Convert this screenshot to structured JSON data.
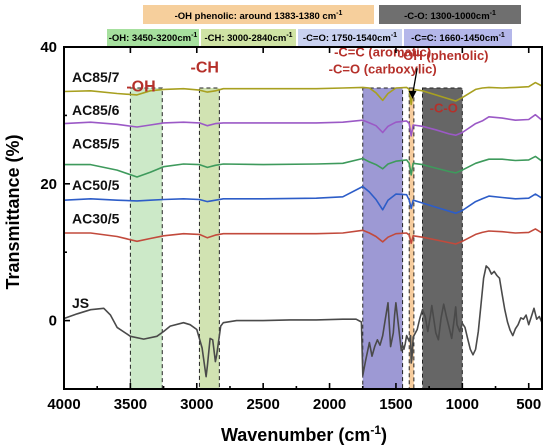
{
  "chart_data": {
    "type": "line",
    "xlabel": "Wavenumber (cm",
    "xlabel_sup": "-1",
    "xlabel_end": ")",
    "ylabel": "Transmittance (%)",
    "xlim": [
      4000,
      400
    ],
    "ylim": [
      -10,
      40
    ],
    "xticks": [
      4000,
      3500,
      3000,
      2500,
      2000,
      1500,
      1000,
      500
    ],
    "yticks": [
      0,
      20,
      40
    ],
    "grid": false,
    "legend": [
      {
        "text": "-OH phenolic: around 1383-1380 cm",
        "sup": "-1",
        "color": "#f6cf9c"
      },
      {
        "text": "-C-O: 1300-1000cm",
        "sup": "-1",
        "color": "#6f6f6f"
      },
      {
        "text": "-OH: 3450-3200cm",
        "sup": "-1",
        "color": "#a6e09e"
      },
      {
        "text": "-CH: 3000-2840cm",
        "sup": "-1",
        "color": "#cfe3a4"
      },
      {
        "text": "-C=O: 1750-1540cm",
        "sup": "-1",
        "color": "#c9d2f0"
      },
      {
        "text": "-C=C: 1660-1450cm",
        "sup": "-1",
        "color": "#b4b7ea"
      }
    ],
    "bands": [
      {
        "from": 3500,
        "to": 3260,
        "color": "#8fcf86",
        "opacity": 0.45
      },
      {
        "from": 2980,
        "to": 2830,
        "color": "#b3d17f",
        "opacity": 0.6
      },
      {
        "from": 1750,
        "to": 1450,
        "color": "#5c55b8",
        "opacity": 0.6
      },
      {
        "from": 1400,
        "to": 1365,
        "color": "#f2b774",
        "opacity": 0.7
      },
      {
        "from": 1300,
        "to": 1000,
        "color": "#333333",
        "opacity": 0.75
      }
    ],
    "annotations": [
      {
        "text": "-OH",
        "x": 3420,
        "y": 33.5,
        "size": 16
      },
      {
        "text": "-CH",
        "x": 2940,
        "y": 36.3,
        "size": 16
      },
      {
        "text": "-C=C (aromatic)",
        "x": 1600,
        "y": 38.6,
        "size": 13
      },
      {
        "text": "-C=O (carboxylic)",
        "x": 1600,
        "y": 36.1,
        "size": 13
      },
      {
        "text": "-OH (phenolic)",
        "x": 1140,
        "y": 38.1,
        "size": 13
      },
      {
        "text": "-C-O",
        "x": 1140,
        "y": 30.4,
        "size": 13
      }
    ],
    "series": [
      {
        "name": "AC85/7",
        "color": "#a8a020",
        "label_y": 35.6,
        "x": [
          4000,
          3800,
          3600,
          3450,
          3350,
          3250,
          3100,
          2980,
          2920,
          2860,
          2800,
          2500,
          2100,
          1900,
          1750,
          1700,
          1650,
          1600,
          1560,
          1500,
          1420,
          1400,
          1385,
          1370,
          1300,
          1200,
          1100,
          1050,
          1000,
          900,
          850,
          800,
          700,
          600,
          500,
          450,
          400
        ],
        "y": [
          33.5,
          33.6,
          33.2,
          33.0,
          33.6,
          33.8,
          33.9,
          33.7,
          33.4,
          33.6,
          33.9,
          33.9,
          33.9,
          34.0,
          34.1,
          34.0,
          33.3,
          32.2,
          33.2,
          34.0,
          34.1,
          33.8,
          31.6,
          33.8,
          33.6,
          33.0,
          32.4,
          32.1,
          32.6,
          33.8,
          34.0,
          34.1,
          34.0,
          34.1,
          34.2,
          34.8,
          34.3
        ]
      },
      {
        "name": "AC85/6",
        "color": "#9b59c6",
        "label_y": 30.8,
        "x": [
          4000,
          3800,
          3600,
          3450,
          3350,
          3250,
          3100,
          2980,
          2920,
          2860,
          2800,
          2500,
          2100,
          1900,
          1750,
          1700,
          1650,
          1600,
          1560,
          1500,
          1420,
          1400,
          1385,
          1370,
          1300,
          1200,
          1100,
          1050,
          1000,
          900,
          850,
          800,
          700,
          600,
          500,
          450,
          400
        ],
        "y": [
          28.8,
          29.0,
          28.7,
          28.3,
          28.6,
          28.9,
          29.0,
          28.9,
          28.5,
          28.8,
          28.9,
          28.9,
          28.9,
          29.0,
          29.3,
          28.9,
          28.5,
          27.5,
          28.4,
          29.0,
          29.2,
          28.8,
          27.0,
          28.6,
          28.4,
          27.9,
          27.3,
          27.1,
          27.5,
          28.8,
          29.2,
          29.8,
          29.6,
          29.3,
          29.4,
          30.1,
          29.3
        ]
      },
      {
        "name": "AC85/5",
        "color": "#3e9a5c",
        "label_y": 25.9,
        "x": [
          4000,
          3800,
          3600,
          3450,
          3350,
          3250,
          3100,
          2980,
          2920,
          2860,
          2800,
          2500,
          2100,
          1900,
          1750,
          1700,
          1650,
          1600,
          1560,
          1500,
          1420,
          1400,
          1385,
          1370,
          1300,
          1200,
          1100,
          1050,
          1000,
          900,
          850,
          800,
          700,
          600,
          500,
          450,
          400
        ],
        "y": [
          22.8,
          22.8,
          22.0,
          21.0,
          21.7,
          22.5,
          22.9,
          22.8,
          22.4,
          22.7,
          22.9,
          22.8,
          22.9,
          23.0,
          23.7,
          23.2,
          22.8,
          22.2,
          22.9,
          23.3,
          23.5,
          23.0,
          21.3,
          23.0,
          22.8,
          22.3,
          21.8,
          21.6,
          22.0,
          23.0,
          23.3,
          23.6,
          23.6,
          23.4,
          23.5,
          24.0,
          23.3
        ]
      },
      {
        "name": "AC50/5",
        "color": "#2d5dc8",
        "label_y": 19.8,
        "x": [
          4000,
          3800,
          3600,
          3450,
          3350,
          3250,
          3100,
          2980,
          2920,
          2860,
          2800,
          2500,
          2100,
          1900,
          1750,
          1700,
          1650,
          1600,
          1560,
          1500,
          1420,
          1400,
          1385,
          1370,
          1300,
          1200,
          1100,
          1050,
          1000,
          900,
          850,
          800,
          700,
          600,
          500,
          450,
          400
        ],
        "y": [
          17.6,
          17.8,
          17.6,
          17.5,
          17.6,
          17.7,
          17.8,
          17.7,
          17.4,
          17.6,
          17.8,
          17.8,
          17.9,
          18.1,
          19.6,
          18.8,
          17.7,
          16.2,
          17.6,
          18.5,
          18.4,
          17.6,
          16.4,
          17.6,
          17.2,
          16.6,
          16.0,
          15.7,
          16.1,
          17.4,
          17.8,
          18.2,
          18.0,
          17.8,
          17.9,
          18.5,
          17.9
        ]
      },
      {
        "name": "AC30/5",
        "color": "#c24a3c",
        "label_y": 14.9,
        "x": [
          4000,
          3800,
          3600,
          3450,
          3350,
          3250,
          3100,
          2980,
          2920,
          2860,
          2800,
          2500,
          2100,
          1900,
          1750,
          1700,
          1650,
          1600,
          1560,
          1500,
          1420,
          1400,
          1385,
          1370,
          1300,
          1200,
          1100,
          1050,
          1000,
          900,
          850,
          800,
          700,
          600,
          500,
          450,
          400
        ],
        "y": [
          12.8,
          12.8,
          12.3,
          11.6,
          12.0,
          12.4,
          12.7,
          12.6,
          12.1,
          12.5,
          12.7,
          12.7,
          12.7,
          12.8,
          13.2,
          12.8,
          12.3,
          11.5,
          12.2,
          12.7,
          12.8,
          12.5,
          11.3,
          12.4,
          12.2,
          11.8,
          11.4,
          11.2,
          11.6,
          12.6,
          12.9,
          13.1,
          13.0,
          12.8,
          12.9,
          13.4,
          12.8
        ]
      },
      {
        "name": "JS",
        "color": "#4a4a4a",
        "label_y": 2.6,
        "x": [
          4000,
          3900,
          3800,
          3700,
          3650,
          3600,
          3500,
          3400,
          3300,
          3250,
          3200,
          3100,
          3050,
          3000,
          2960,
          2930,
          2920,
          2900,
          2880,
          2860,
          2850,
          2820,
          2800,
          2700,
          2500,
          2300,
          2100,
          1900,
          1800,
          1760,
          1750,
          1730,
          1700,
          1680,
          1660,
          1640,
          1620,
          1600,
          1580,
          1560,
          1540,
          1520,
          1510,
          1500,
          1470,
          1460,
          1450,
          1440,
          1430,
          1420,
          1410,
          1400,
          1390,
          1385,
          1380,
          1370,
          1340,
          1320,
          1300,
          1280,
          1260,
          1240,
          1230,
          1200,
          1180,
          1160,
          1140,
          1120,
          1100,
          1080,
          1060,
          1050,
          1040,
          1020,
          1000,
          980,
          960,
          940,
          920,
          900,
          880,
          860,
          840,
          820,
          800,
          780,
          760,
          740,
          720,
          700,
          680,
          660,
          640,
          620,
          600,
          580,
          560,
          540,
          520,
          500,
          480,
          460,
          440,
          420,
          400
        ],
        "y": [
          0.3,
          1.0,
          1.6,
          1.8,
          0.8,
          -1.0,
          -2.3,
          -2.7,
          -2.3,
          -1.6,
          -0.8,
          -0.3,
          -0.6,
          -1.3,
          -4.0,
          -8.2,
          -6.6,
          -2.6,
          -2.8,
          -6.0,
          -5.0,
          -0.8,
          -0.3,
          0.0,
          0.0,
          0.1,
          0.1,
          0.2,
          0.2,
          -0.2,
          -8.0,
          -6.0,
          -3.2,
          -5.2,
          -3.8,
          -2.8,
          -3.6,
          -2.2,
          0.2,
          2.6,
          -3.8,
          -1.8,
          0.8,
          2.6,
          -2.6,
          -4.4,
          -3.6,
          -4.2,
          -3.4,
          -2.2,
          -2.6,
          -3.0,
          -2.2,
          -6.2,
          -5.6,
          -2.4,
          -1.3,
          0.3,
          1.6,
          0.6,
          -1.6,
          0.8,
          2.2,
          -1.8,
          -2.8,
          0.4,
          2.4,
          0.6,
          -1.0,
          -2.6,
          0.4,
          2.0,
          -0.6,
          -1.6,
          -0.4,
          -1.0,
          -2.6,
          -4.2,
          -5.0,
          -4.2,
          -1.6,
          2.2,
          6.2,
          8.0,
          7.6,
          6.8,
          7.2,
          6.6,
          6.2,
          3.8,
          1.6,
          -0.2,
          -1.4,
          -2.2,
          -1.2,
          -0.6,
          0.4,
          0.2,
          0.8,
          -0.6,
          0.6,
          1.8,
          0.2,
          0.6,
          -0.3
        ]
      }
    ]
  }
}
